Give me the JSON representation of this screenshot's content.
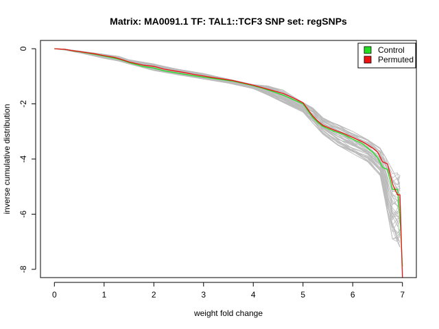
{
  "chart_data": {
    "type": "line",
    "title": "Matrix: MA0091.1 TF: TAL1::TCF3 SNP set: regSNPs",
    "xlabel": "weight fold change",
    "ylabel": "inverse cumulative distribution",
    "xlim": [
      -0.28,
      7.28
    ],
    "ylim": [
      -8.3,
      0.3
    ],
    "xticks": [
      0,
      1,
      2,
      3,
      4,
      5,
      6,
      7
    ],
    "yticks": [
      0,
      -2,
      -4,
      -6,
      -8
    ],
    "grid": false,
    "legend": {
      "position": "top-right",
      "entries": [
        {
          "label": "Control",
          "color": "#22dd22"
        },
        {
          "label": "Permuted",
          "color": "#ee1111"
        }
      ]
    },
    "background_series": {
      "color": "#bbbbbb",
      "description": "permutation curves",
      "x": [
        0.0,
        0.2,
        0.5,
        1.0,
        1.3,
        1.5,
        2.0,
        2.5,
        3.0,
        3.5,
        4.0,
        4.3,
        4.6,
        5.0,
        5.2,
        5.4,
        5.7,
        6.0,
        6.3,
        6.55,
        6.65,
        6.8,
        6.9,
        6.95
      ],
      "lower": [
        0.0,
        -0.05,
        -0.15,
        -0.35,
        -0.45,
        -0.55,
        -0.8,
        -0.95,
        -1.1,
        -1.25,
        -1.45,
        -1.7,
        -1.95,
        -2.3,
        -2.7,
        -3.1,
        -3.5,
        -3.8,
        -4.1,
        -4.6,
        -5.5,
        -6.9,
        -7.0,
        -7.2
      ],
      "upper": [
        0.0,
        -0.01,
        -0.08,
        -0.2,
        -0.28,
        -0.4,
        -0.55,
        -0.75,
        -0.9,
        -1.1,
        -1.3,
        -1.35,
        -1.5,
        -1.95,
        -2.15,
        -2.5,
        -2.75,
        -3.0,
        -3.3,
        -3.6,
        -3.9,
        -4.4,
        -4.5,
        -4.6
      ]
    },
    "series": [
      {
        "name": "Control",
        "color": "#22dd22",
        "x": [
          0.0,
          0.2,
          0.3,
          0.4,
          0.5,
          0.6,
          0.8,
          1.0,
          1.2,
          1.3,
          1.4,
          1.5,
          1.6,
          1.8,
          2.0,
          2.1,
          2.2,
          2.4,
          2.6,
          2.8,
          3.0,
          3.2,
          3.4,
          3.6,
          3.8,
          4.0,
          4.2,
          4.4,
          4.6,
          4.8,
          5.0,
          5.2,
          5.3,
          5.4,
          5.6,
          5.8,
          6.0,
          6.2,
          6.4,
          6.5,
          6.6,
          6.7,
          6.8,
          6.9,
          6.95,
          7.0
        ],
        "values": [
          0.0,
          -0.02,
          -0.05,
          -0.09,
          -0.11,
          -0.14,
          -0.2,
          -0.27,
          -0.34,
          -0.38,
          -0.44,
          -0.5,
          -0.55,
          -0.65,
          -0.7,
          -0.75,
          -0.8,
          -0.86,
          -0.92,
          -0.98,
          -1.03,
          -1.08,
          -1.13,
          -1.18,
          -1.26,
          -1.34,
          -1.44,
          -1.56,
          -1.68,
          -1.84,
          -2.0,
          -2.5,
          -2.68,
          -2.82,
          -2.98,
          -3.1,
          -3.28,
          -3.45,
          -3.75,
          -3.95,
          -4.3,
          -4.38,
          -5.1,
          -5.1,
          -6.1,
          -7.9
        ]
      },
      {
        "name": "Permuted",
        "color": "#ee1111",
        "x": [
          0.0,
          0.2,
          0.3,
          0.4,
          0.5,
          0.6,
          0.8,
          1.0,
          1.2,
          1.3,
          1.4,
          1.5,
          1.6,
          1.8,
          2.0,
          2.1,
          2.2,
          2.4,
          2.6,
          2.8,
          3.0,
          3.2,
          3.4,
          3.6,
          3.8,
          4.0,
          4.2,
          4.4,
          4.6,
          4.8,
          5.0,
          5.2,
          5.3,
          5.4,
          5.6,
          5.8,
          6.0,
          6.2,
          6.4,
          6.5,
          6.6,
          6.7,
          6.8,
          6.9,
          6.95,
          7.0
        ],
        "values": [
          0.0,
          -0.02,
          -0.05,
          -0.08,
          -0.1,
          -0.13,
          -0.18,
          -0.25,
          -0.31,
          -0.36,
          -0.42,
          -0.48,
          -0.52,
          -0.6,
          -0.64,
          -0.69,
          -0.74,
          -0.8,
          -0.86,
          -0.93,
          -0.99,
          -1.05,
          -1.1,
          -1.16,
          -1.24,
          -1.32,
          -1.42,
          -1.52,
          -1.62,
          -1.78,
          -1.96,
          -2.45,
          -2.63,
          -2.78,
          -2.93,
          -3.06,
          -3.22,
          -3.38,
          -3.6,
          -3.75,
          -4.1,
          -4.18,
          -4.9,
          -5.3,
          -5.3,
          -8.3
        ]
      }
    ]
  }
}
